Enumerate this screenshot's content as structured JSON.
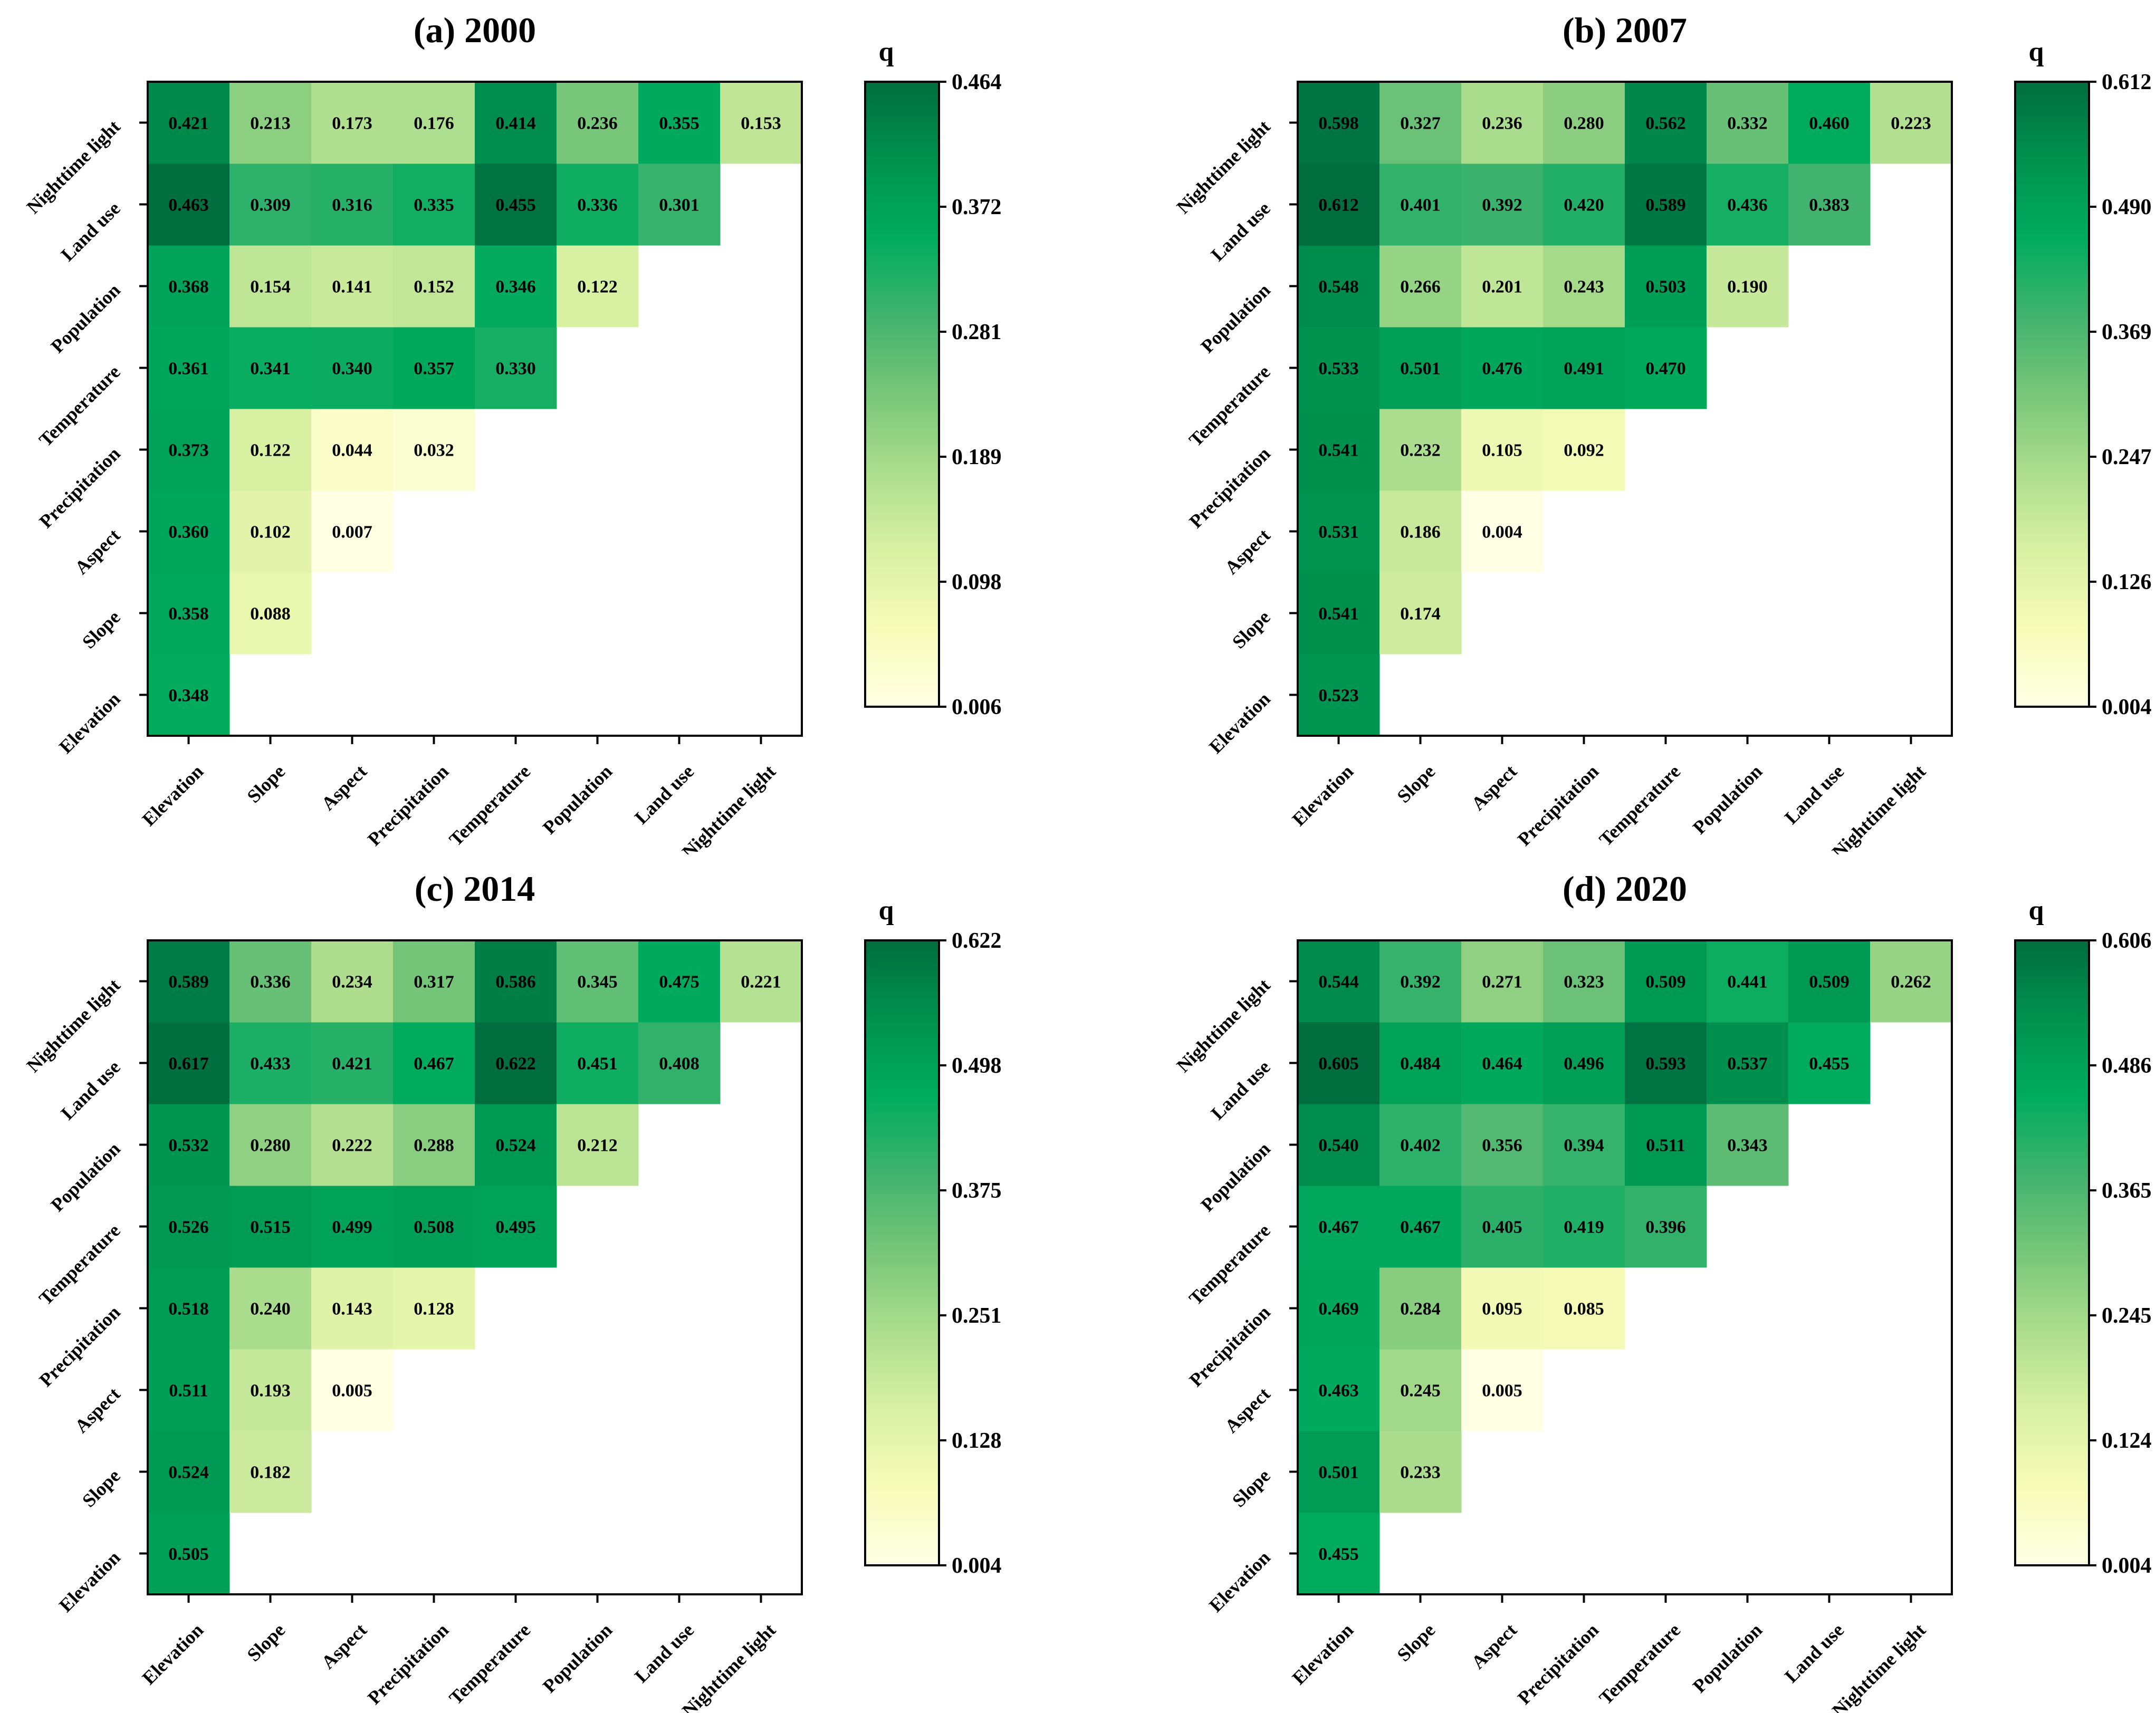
{
  "chart_data": [
    {
      "type": "heatmap",
      "title": "(a) 2000",
      "colorbar_label": "q",
      "colorbar_ticks": [
        "0.006",
        "0.098",
        "0.189",
        "0.281",
        "0.372",
        "0.464"
      ],
      "vmin": 0.006,
      "vmax": 0.464,
      "factors": [
        "Elevation",
        "Slope",
        "Aspect",
        "Precipitation",
        "Temperature",
        "Population",
        "Land use",
        "Nighttime light"
      ],
      "values": [
        [
          0.348
        ],
        [
          0.358,
          0.088
        ],
        [
          0.36,
          0.102,
          0.007
        ],
        [
          0.373,
          0.122,
          0.044,
          0.032
        ],
        [
          0.361,
          0.341,
          0.34,
          0.357,
          0.33
        ],
        [
          0.368,
          0.154,
          0.141,
          0.152,
          0.346,
          0.122
        ],
        [
          0.463,
          0.309,
          0.316,
          0.335,
          0.455,
          0.336,
          0.301
        ],
        [
          0.421,
          0.213,
          0.173,
          0.176,
          0.414,
          0.236,
          0.355,
          0.153
        ]
      ]
    },
    {
      "type": "heatmap",
      "title": "(b) 2007",
      "colorbar_label": "q",
      "colorbar_ticks": [
        "0.004",
        "0.126",
        "0.247",
        "0.369",
        "0.490",
        "0.612"
      ],
      "vmin": 0.004,
      "vmax": 0.612,
      "factors": [
        "Elevation",
        "Slope",
        "Aspect",
        "Precipitation",
        "Temperature",
        "Population",
        "Land use",
        "Nighttime light"
      ],
      "values": [
        [
          0.523
        ],
        [
          0.541,
          0.174
        ],
        [
          0.531,
          0.186,
          0.004
        ],
        [
          0.541,
          0.232,
          0.105,
          0.092
        ],
        [
          0.533,
          0.501,
          0.476,
          0.491,
          0.47
        ],
        [
          0.548,
          0.266,
          0.201,
          0.243,
          0.503,
          0.19
        ],
        [
          0.612,
          0.401,
          0.392,
          0.42,
          0.589,
          0.436,
          0.383
        ],
        [
          0.598,
          0.327,
          0.236,
          0.28,
          0.562,
          0.332,
          0.46,
          0.223
        ]
      ]
    },
    {
      "type": "heatmap",
      "title": "(c) 2014",
      "colorbar_label": "q",
      "colorbar_ticks": [
        "0.004",
        "0.128",
        "0.251",
        "0.375",
        "0.498",
        "0.622"
      ],
      "vmin": 0.004,
      "vmax": 0.622,
      "factors": [
        "Elevation",
        "Slope",
        "Aspect",
        "Precipitation",
        "Temperature",
        "Population",
        "Land use",
        "Nighttime light"
      ],
      "values": [
        [
          0.505
        ],
        [
          0.524,
          0.182
        ],
        [
          0.511,
          0.193,
          0.005
        ],
        [
          0.518,
          0.24,
          0.143,
          0.128
        ],
        [
          0.526,
          0.515,
          0.499,
          0.508,
          0.495
        ],
        [
          0.532,
          0.28,
          0.222,
          0.288,
          0.524,
          0.212
        ],
        [
          0.617,
          0.433,
          0.421,
          0.467,
          0.622,
          0.451,
          0.408
        ],
        [
          0.589,
          0.336,
          0.234,
          0.317,
          0.586,
          0.345,
          0.475,
          0.221
        ]
      ]
    },
    {
      "type": "heatmap",
      "title": "(d) 2020",
      "colorbar_label": "q",
      "colorbar_ticks": [
        "0.004",
        "0.124",
        "0.245",
        "0.365",
        "0.486",
        "0.606"
      ],
      "vmin": 0.004,
      "vmax": 0.606,
      "factors": [
        "Elevation",
        "Slope",
        "Aspect",
        "Precipitation",
        "Temperature",
        "Population",
        "Land use",
        "Nighttime light"
      ],
      "values": [
        [
          0.455
        ],
        [
          0.501,
          0.233
        ],
        [
          0.463,
          0.245,
          0.005
        ],
        [
          0.469,
          0.284,
          0.095,
          0.085
        ],
        [
          0.467,
          0.467,
          0.405,
          0.419,
          0.396
        ],
        [
          0.54,
          0.402,
          0.356,
          0.394,
          0.511,
          0.343
        ],
        [
          0.605,
          0.484,
          0.464,
          0.496,
          0.593,
          0.537,
          0.455
        ],
        [
          0.544,
          0.392,
          0.271,
          0.323,
          0.509,
          0.441,
          0.509,
          0.262
        ]
      ]
    }
  ],
  "colormap": [
    "#ffffe5",
    "#f7fcb9",
    "#d9f0a3",
    "#addd8e",
    "#78c679",
    "#41b36f",
    "#00ab5e",
    "#00924f",
    "#006d3f"
  ]
}
